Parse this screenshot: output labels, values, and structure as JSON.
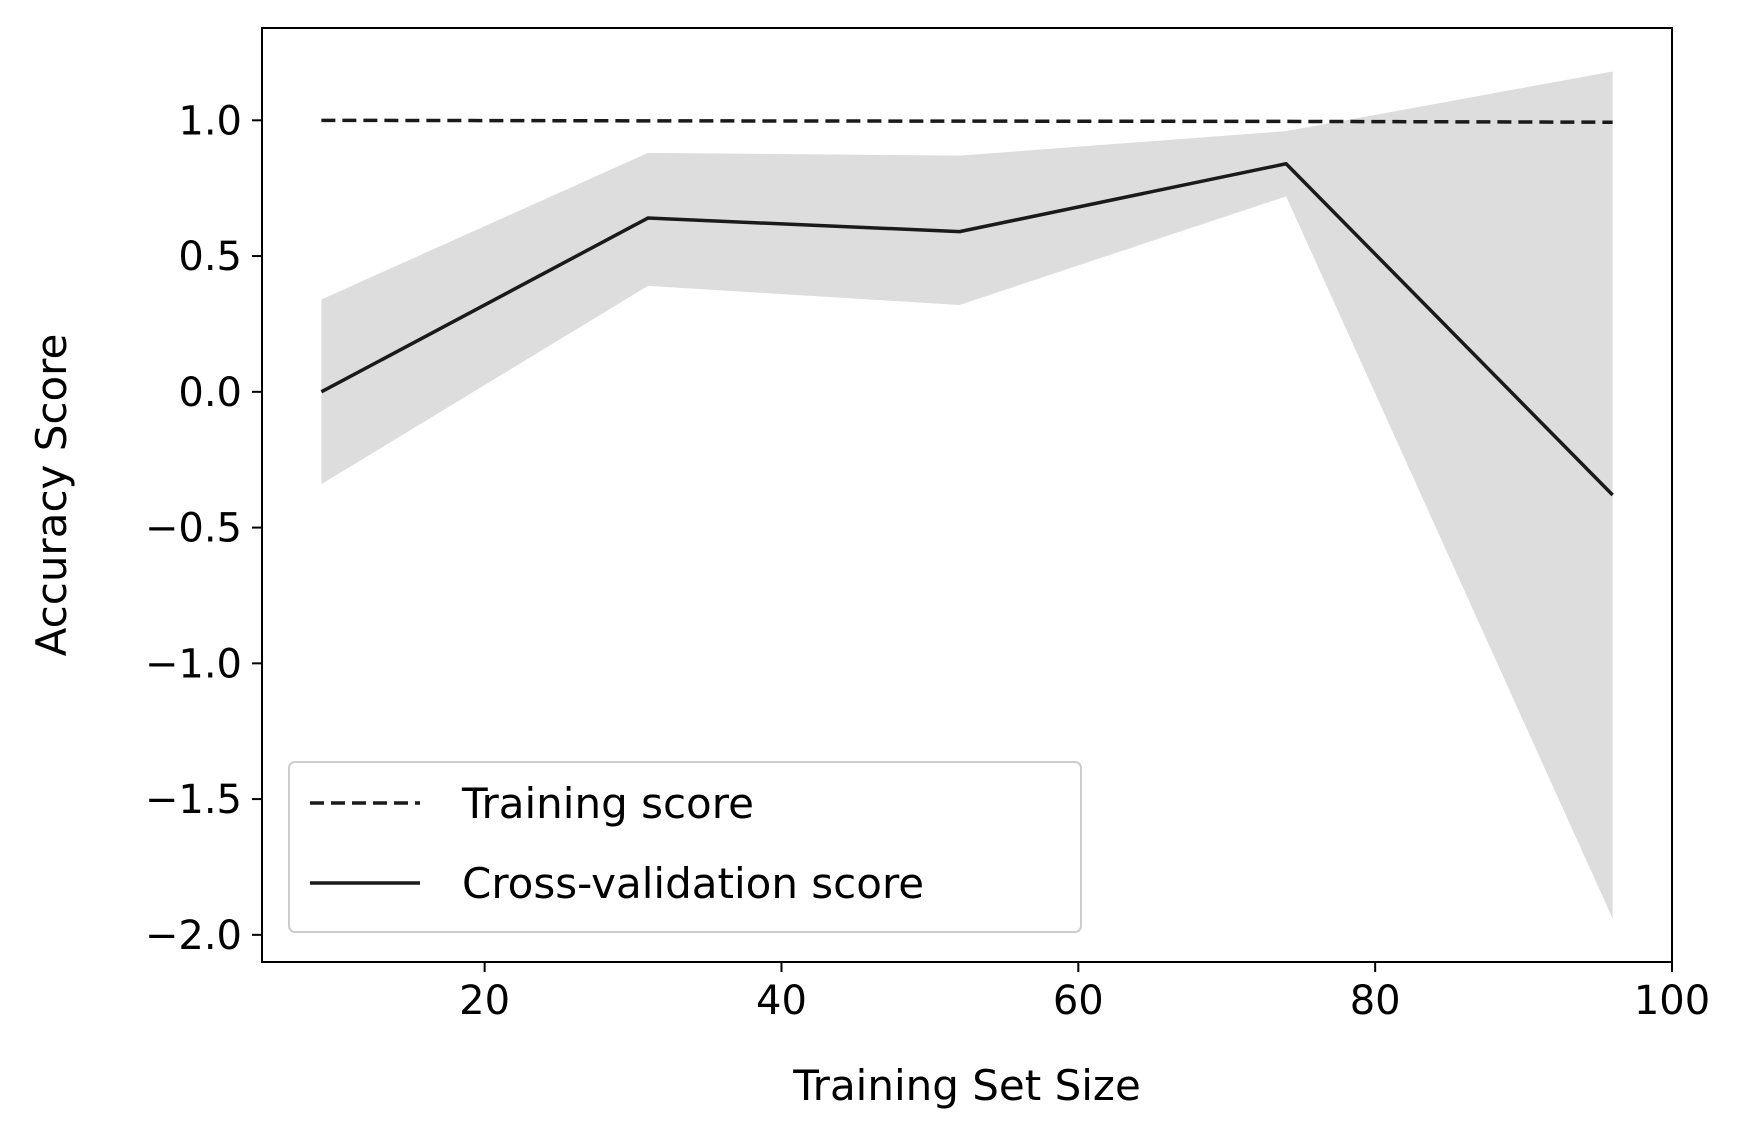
{
  "chart_data": {
    "type": "line",
    "title": "",
    "xlabel": "Training Set Size",
    "ylabel": "Accuracy Score",
    "xlim": [
      5,
      100
    ],
    "ylim": [
      -2.1,
      1.34
    ],
    "xticks": [
      20,
      40,
      60,
      80,
      100
    ],
    "xtick_labels": [
      "20",
      "40",
      "60",
      "80",
      "100"
    ],
    "yticks": [
      -2.0,
      -1.5,
      -1.0,
      -0.5,
      0.0,
      0.5,
      1.0
    ],
    "ytick_labels": [
      "−2.0",
      "−1.5",
      "−1.0",
      "−0.5",
      "0.0",
      "0.5",
      "1.0"
    ],
    "grid": false,
    "legend_position": "lower-left",
    "x": [
      9,
      31,
      52,
      74,
      96
    ],
    "series": [
      {
        "name": "Training score",
        "style": "dashed",
        "color": "#1a1a1a",
        "values": [
          1.0,
          0.998,
          0.997,
          0.996,
          0.993
        ]
      },
      {
        "name": "Cross-validation score",
        "style": "solid",
        "color": "#1a1a1a",
        "values": [
          0.0,
          0.64,
          0.59,
          0.84,
          -0.38
        ],
        "band_lower": [
          -0.34,
          0.39,
          0.32,
          0.72,
          -1.94
        ],
        "band_upper": [
          0.34,
          0.88,
          0.87,
          0.96,
          1.18
        ],
        "band_color": "#dddddd"
      }
    ]
  }
}
